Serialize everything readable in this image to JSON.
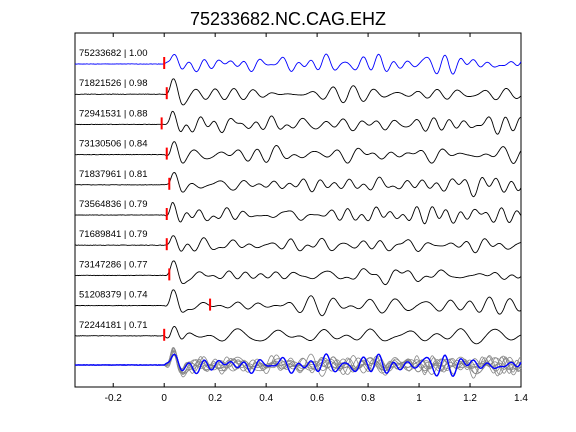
{
  "chart_data": {
    "type": "line",
    "title": "75233682.NC.CAG.EHZ",
    "xlabel": "",
    "ylabel": "",
    "xlim": [
      -0.35,
      1.4
    ],
    "xticks": [
      -0.2,
      0,
      0.2,
      0.4,
      0.6,
      0.8,
      1,
      1.2,
      1.4
    ],
    "xtick_labels": [
      "-0.2",
      "0",
      "0.2",
      "0.4",
      "0.6",
      "0.8",
      "1",
      "1.2",
      "1.4"
    ],
    "grid": false,
    "traces": [
      {
        "event_id": "75233682",
        "cc": "1.00",
        "label": "75233682 | 1.00",
        "pick_time": 0.0,
        "color": "#0000ff",
        "seed": 1
      },
      {
        "event_id": "71821526",
        "cc": "0.98",
        "label": "71821526 | 0.98",
        "pick_time": 0.01,
        "color": "#000000",
        "seed": 2
      },
      {
        "event_id": "72941531",
        "cc": "0.88",
        "label": "72941531 | 0.88",
        "pick_time": -0.01,
        "color": "#000000",
        "seed": 3
      },
      {
        "event_id": "73130506",
        "cc": "0.84",
        "label": "73130506 | 0.84",
        "pick_time": 0.01,
        "color": "#000000",
        "seed": 4
      },
      {
        "event_id": "71837961",
        "cc": "0.81",
        "label": "71837961 | 0.81",
        "pick_time": 0.02,
        "color": "#000000",
        "seed": 5
      },
      {
        "event_id": "73564836",
        "cc": "0.79",
        "label": "73564836 | 0.79",
        "pick_time": 0.01,
        "color": "#000000",
        "seed": 6
      },
      {
        "event_id": "71689841",
        "cc": "0.79",
        "label": "71689841 | 0.79",
        "pick_time": 0.01,
        "color": "#000000",
        "seed": 7
      },
      {
        "event_id": "73147286",
        "cc": "0.77",
        "label": "73147286 | 0.77",
        "pick_time": 0.02,
        "color": "#000000",
        "seed": 8
      },
      {
        "event_id": "51208379",
        "cc": "0.74",
        "label": "51208379 | 0.74",
        "pick_time": 0.18,
        "color": "#000000",
        "seed": 9
      },
      {
        "event_id": "72244181",
        "cc": "0.71",
        "label": "72244181 | 0.71",
        "pick_time": 0.0,
        "color": "#000000",
        "seed": 10
      }
    ],
    "stack": {
      "overlay_color": "#888888",
      "reference_color": "#0000ff"
    },
    "pick_marker_color": "#ff0000"
  }
}
